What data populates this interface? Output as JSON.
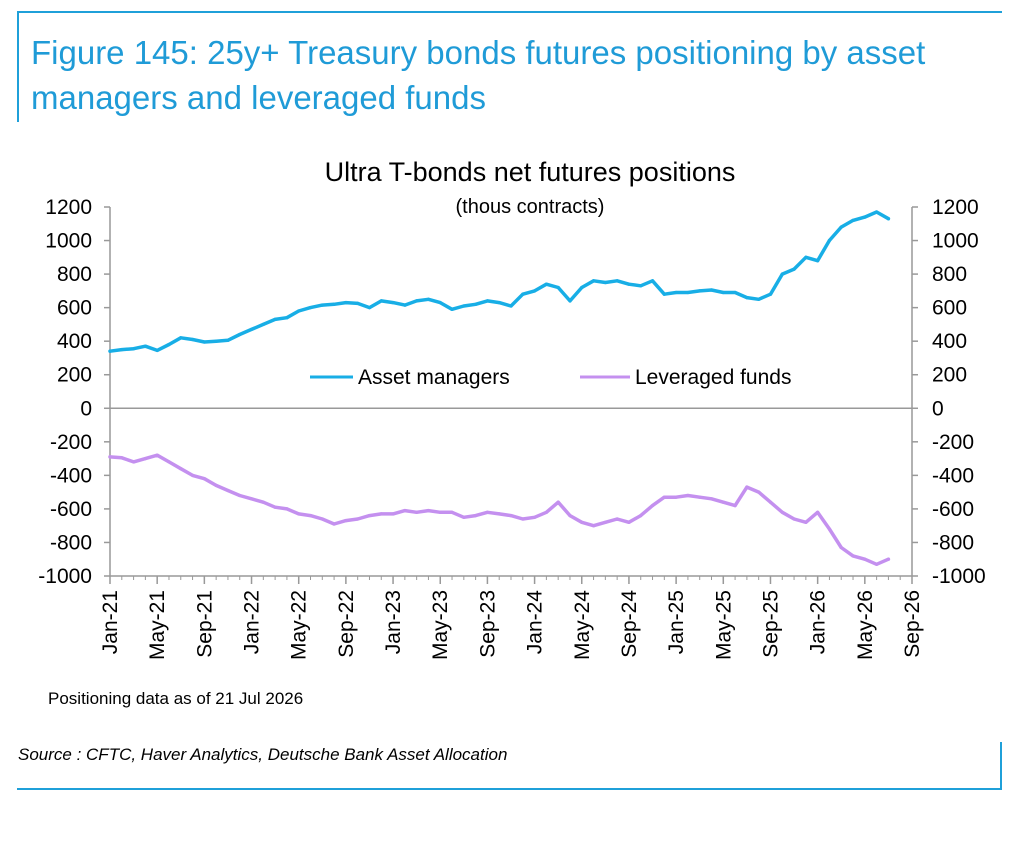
{
  "figure": {
    "title": "Figure 145: 25y+ Treasury bonds futures positioning by asset managers and leveraged funds",
    "footnote": "Positioning data as of 21 Jul 2026",
    "source": "Source : CFTC, Haver Analytics, Deutsche Bank Asset Allocation",
    "accent_color": "#1f9bd7"
  },
  "chart_data": {
    "type": "line",
    "title": "Ultra T-bonds net futures positions",
    "subtitle": "(thous contracts)",
    "xlabel": "",
    "ylabel": "",
    "ylim": [
      -1000,
      1200
    ],
    "yticks": [
      1200,
      1000,
      800,
      600,
      400,
      200,
      0,
      -200,
      -400,
      -600,
      -800,
      -1000
    ],
    "xlim": [
      "2021-01",
      "2026-09"
    ],
    "xticks": [
      "Jan-21",
      "May-21",
      "Sep-21",
      "Jan-22",
      "May-22",
      "Sep-22",
      "Jan-23",
      "May-23",
      "Sep-23",
      "Jan-24",
      "May-24",
      "Sep-24",
      "Jan-25",
      "May-25",
      "Sep-25",
      "Jan-26",
      "May-26",
      "Sep-26"
    ],
    "grid": false,
    "secondary_y_axis": true,
    "legend_position": "center",
    "x": [
      "2021-01",
      "2021-02",
      "2021-03",
      "2021-04",
      "2021-05",
      "2021-06",
      "2021-07",
      "2021-08",
      "2021-09",
      "2021-10",
      "2021-11",
      "2021-12",
      "2022-01",
      "2022-02",
      "2022-03",
      "2022-04",
      "2022-05",
      "2022-06",
      "2022-07",
      "2022-08",
      "2022-09",
      "2022-10",
      "2022-11",
      "2022-12",
      "2023-01",
      "2023-02",
      "2023-03",
      "2023-04",
      "2023-05",
      "2023-06",
      "2023-07",
      "2023-08",
      "2023-09",
      "2023-10",
      "2023-11",
      "2023-12",
      "2024-01",
      "2024-02",
      "2024-03",
      "2024-04",
      "2024-05",
      "2024-06",
      "2024-07",
      "2024-08",
      "2024-09",
      "2024-10",
      "2024-11",
      "2024-12",
      "2025-01",
      "2025-02",
      "2025-03",
      "2025-04",
      "2025-05",
      "2025-06",
      "2025-07",
      "2025-08",
      "2025-09",
      "2025-10",
      "2025-11",
      "2025-12",
      "2026-01",
      "2026-02",
      "2026-03",
      "2026-04",
      "2026-05",
      "2026-06",
      "2026-07"
    ],
    "series": [
      {
        "name": "Asset managers",
        "color": "#18aee6",
        "values": [
          340,
          350,
          355,
          370,
          345,
          380,
          420,
          410,
          395,
          400,
          405,
          440,
          470,
          500,
          530,
          540,
          580,
          600,
          615,
          620,
          630,
          625,
          600,
          640,
          630,
          615,
          640,
          650,
          630,
          590,
          610,
          620,
          640,
          630,
          610,
          680,
          700,
          740,
          720,
          640,
          720,
          760,
          750,
          760,
          740,
          730,
          760,
          680,
          690,
          690,
          700,
          705,
          690,
          690,
          660,
          650,
          680,
          800,
          830,
          900,
          880,
          1000,
          1080,
          1120,
          1140,
          1170,
          1130
        ]
      },
      {
        "name": "Leveraged funds",
        "color": "#c490ef",
        "values": [
          -290,
          -295,
          -320,
          -300,
          -280,
          -320,
          -360,
          -400,
          -420,
          -460,
          -490,
          -520,
          -540,
          -560,
          -590,
          -600,
          -630,
          -640,
          -660,
          -690,
          -670,
          -660,
          -640,
          -630,
          -630,
          -610,
          -620,
          -610,
          -620,
          -620,
          -650,
          -640,
          -620,
          -630,
          -640,
          -660,
          -650,
          -620,
          -560,
          -640,
          -680,
          -700,
          -680,
          -660,
          -680,
          -640,
          -580,
          -530,
          -530,
          -520,
          -530,
          -540,
          -560,
          -580,
          -470,
          -500,
          -560,
          -620,
          -660,
          -680,
          -620,
          -720,
          -830,
          -880,
          -900,
          -930,
          -900
        ]
      }
    ]
  }
}
